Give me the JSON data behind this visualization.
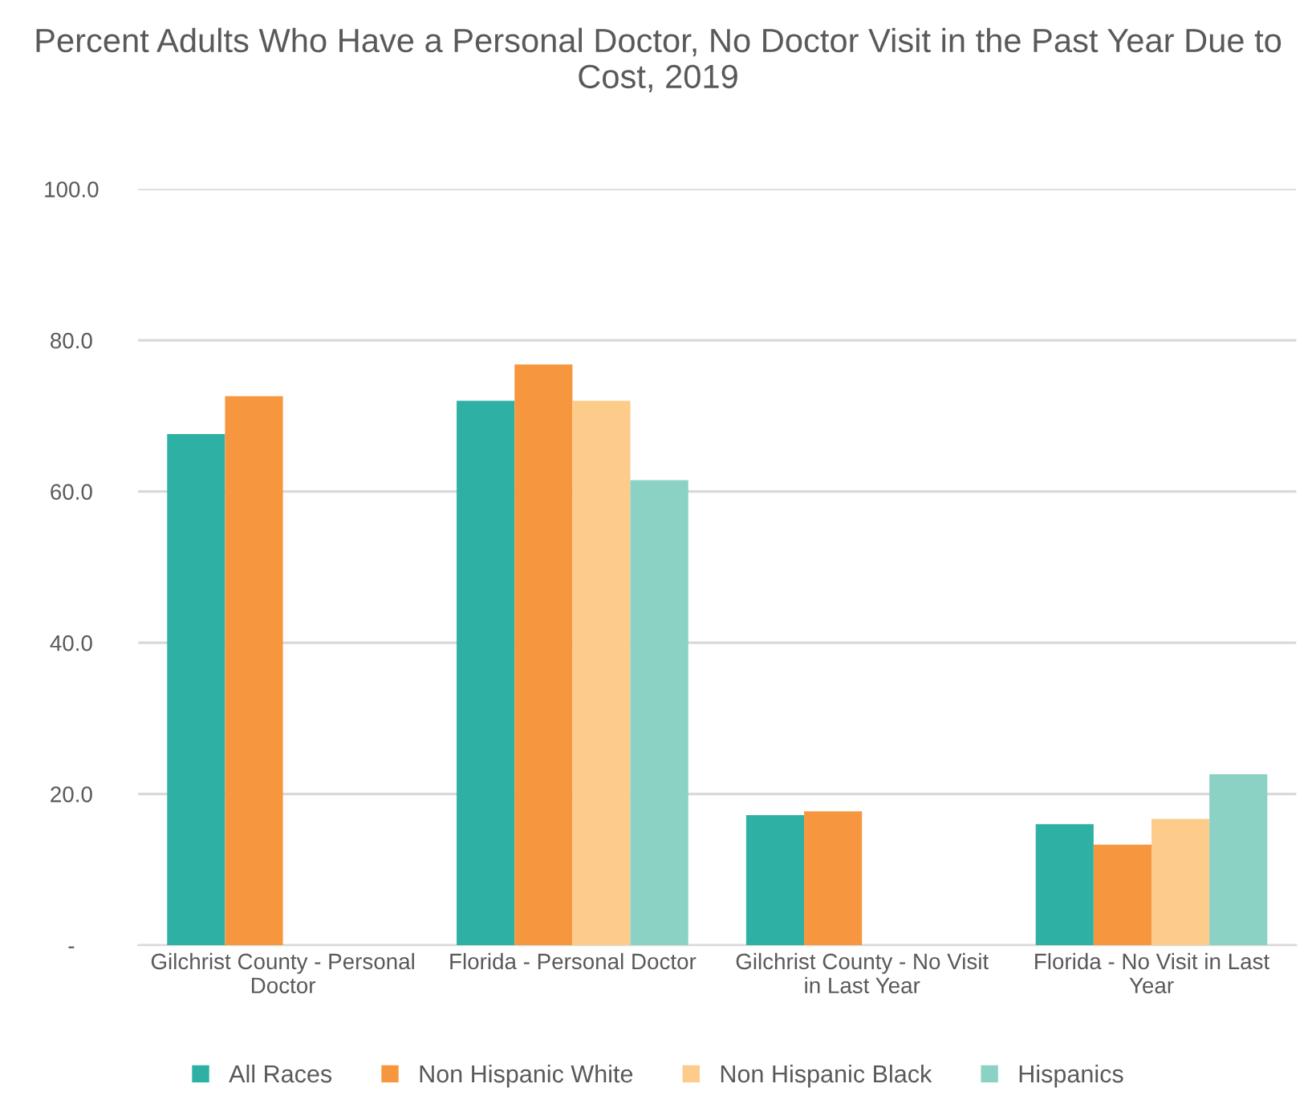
{
  "chart_data": {
    "type": "bar",
    "title": "Percent Adults Who Have a Personal Doctor, No Doctor Visit in the Past Year Due to Cost, 2019",
    "categories": [
      "Gilchrist County - Personal Doctor",
      "Florida - Personal Doctor",
      "Gilchrist County - No Visit in Last Year",
      "Florida - No Visit in Last Year"
    ],
    "series": [
      {
        "name": "All Races",
        "color": "#2eb0a5",
        "values": [
          67.6,
          72.0,
          17.2,
          16.0
        ]
      },
      {
        "name": "Non Hispanic White",
        "color": "#f6973f",
        "values": [
          72.6,
          76.8,
          17.7,
          13.3
        ]
      },
      {
        "name": "Non Hispanic Black",
        "color": "#fdcb8a",
        "values": [
          null,
          72.0,
          null,
          16.7
        ]
      },
      {
        "name": "Hispanics",
        "color": "#8bd2c4",
        "values": [
          null,
          61.5,
          null,
          22.6
        ]
      }
    ],
    "ylim": [
      0,
      100
    ],
    "yticks": [
      {
        "value": 0,
        "label": "-"
      },
      {
        "value": 20,
        "label": "20.0"
      },
      {
        "value": 40,
        "label": "40.0"
      },
      {
        "value": 60,
        "label": "60.0"
      },
      {
        "value": 80,
        "label": "80.0"
      },
      {
        "value": 100,
        "label": "100.0"
      }
    ],
    "grid": "y",
    "legend": "bottom"
  }
}
